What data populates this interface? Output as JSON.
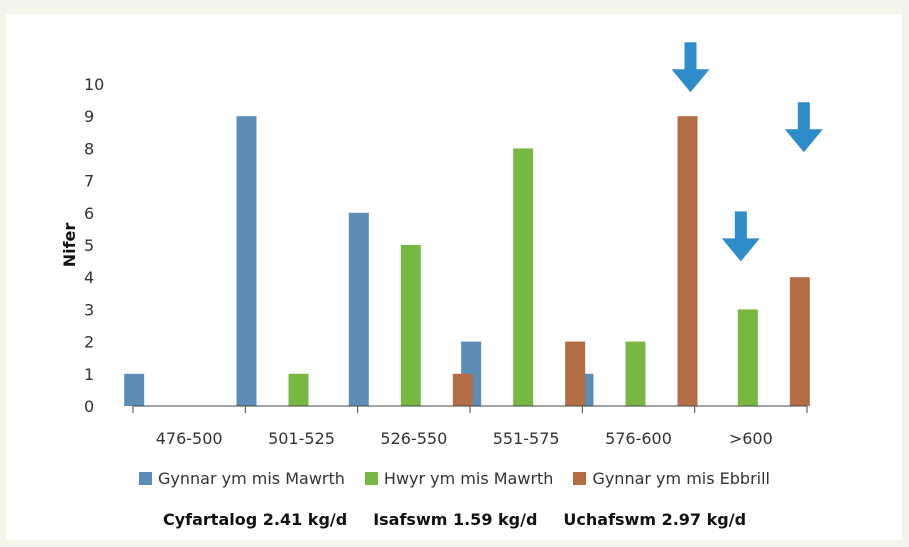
{
  "chart_data": {
    "type": "bar",
    "categories": [
      "476-500",
      "501-525",
      "526-550",
      "551-575",
      "576-600",
      ">600"
    ],
    "series": [
      {
        "name": "Gynnar ym mis Mawrth",
        "color": "#5b8db8",
        "values": [
          1,
          9,
          6,
          2,
          1,
          0
        ]
      },
      {
        "name": "Hwyr ym mis Mawrth",
        "color": "#77b843",
        "values": [
          0,
          1,
          5,
          8,
          2,
          3
        ]
      },
      {
        "name": "Gynnar ym mis Ebbrill",
        "color": "#b36d45",
        "values": [
          0,
          0,
          1,
          2,
          9,
          4
        ]
      }
    ],
    "ylabel": "Nifer",
    "ylim": [
      0,
      10
    ],
    "yticks": [
      "0",
      "1",
      "2",
      "3",
      "4",
      "5",
      "6",
      "7",
      "8",
      "9",
      "10"
    ],
    "legend_position": "bottom",
    "annotations": [
      {
        "type": "arrow-down",
        "color": "#2f8ccb",
        "near": "576-600 Gynnar ym mis Ebbrill"
      },
      {
        "type": "arrow-down",
        "color": "#2f8ccb",
        "near": ">600 Gynnar ym mis Ebbrill"
      },
      {
        "type": "arrow-down",
        "color": "#2f8ccb",
        "near": ">600 Hwyr ym mis Mawrth"
      }
    ]
  },
  "footer": {
    "average": "Cyfartalog 2.41 kg/d",
    "minimum": "Isafswm 1.59 kg/d",
    "maximum": "Uchafswm 2.97 kg/d"
  }
}
